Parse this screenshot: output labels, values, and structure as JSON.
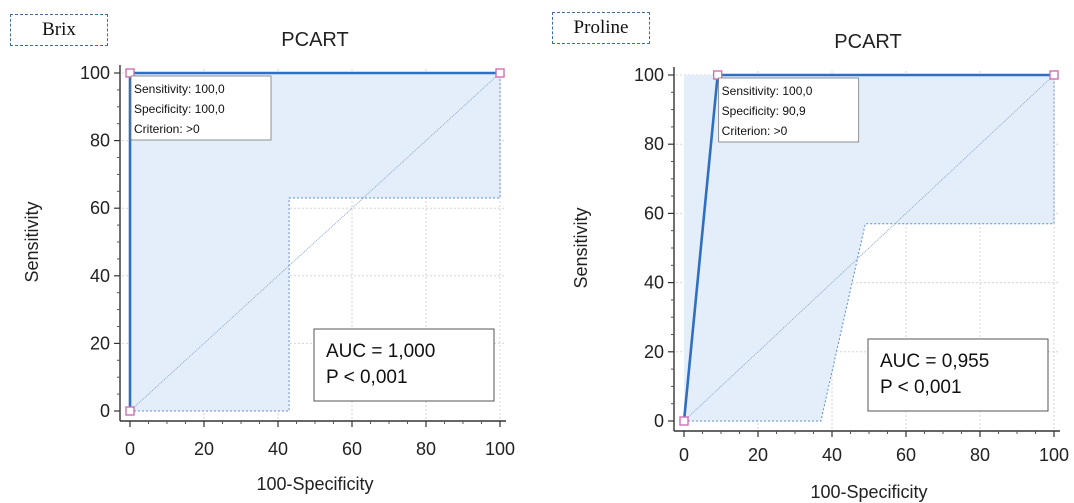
{
  "chart_data": [
    {
      "type": "line",
      "tag": "Brix",
      "title": "PCART",
      "xlabel": "100-Specificity",
      "ylabel": "Sensitivity",
      "xlim": [
        0,
        100
      ],
      "ylim": [
        0,
        100
      ],
      "xticks": [
        "0",
        "20",
        "40",
        "60",
        "80",
        "100"
      ],
      "yticks": [
        "0",
        "20",
        "40",
        "60",
        "80",
        "100"
      ],
      "grid": true,
      "roc_curve": {
        "x": [
          0,
          0,
          100
        ],
        "y": [
          0,
          100,
          100
        ]
      },
      "confidence_band": {
        "upper": {
          "x": [
            0,
            0,
            100
          ],
          "y": [
            0,
            100,
            100
          ]
        },
        "lower": {
          "x": [
            0,
            43,
            43,
            100,
            100
          ],
          "y": [
            0,
            0,
            63,
            63,
            100
          ]
        }
      },
      "reference_line": {
        "x": [
          0,
          100
        ],
        "y": [
          0,
          100
        ]
      },
      "criterion_box": {
        "lines": [
          "Sensitivity: 100,0",
          "Specificity: 100,0",
          "Criterion: >0"
        ]
      },
      "auc_box": {
        "lines": [
          "AUC = 1,000",
          "P < 0,001"
        ]
      }
    },
    {
      "type": "line",
      "tag": "Proline",
      "title": "PCART",
      "xlabel": "100-Specificity",
      "ylabel": "Sensitivity",
      "xlim": [
        0,
        100
      ],
      "ylim": [
        0,
        100
      ],
      "xticks": [
        "0",
        "20",
        "40",
        "60",
        "80",
        "100"
      ],
      "yticks": [
        "0",
        "20",
        "40",
        "60",
        "80",
        "100"
      ],
      "grid": true,
      "roc_curve": {
        "x": [
          0,
          9.1,
          100
        ],
        "y": [
          0,
          100,
          100
        ]
      },
      "confidence_band": {
        "upper": {
          "x": [
            0,
            0,
            100
          ],
          "y": [
            0,
            100,
            100
          ]
        },
        "lower": {
          "x": [
            0,
            37,
            49,
            100,
            100
          ],
          "y": [
            0,
            0,
            57,
            57,
            100
          ]
        }
      },
      "reference_line": {
        "x": [
          0,
          100
        ],
        "y": [
          0,
          100
        ]
      },
      "criterion_box": {
        "lines": [
          "Sensitivity: 100,0",
          "Specificity: 90,9",
          "Criterion: >0"
        ]
      },
      "auc_box": {
        "lines": [
          "AUC = 0,955",
          "P < 0,001"
        ]
      }
    }
  ]
}
